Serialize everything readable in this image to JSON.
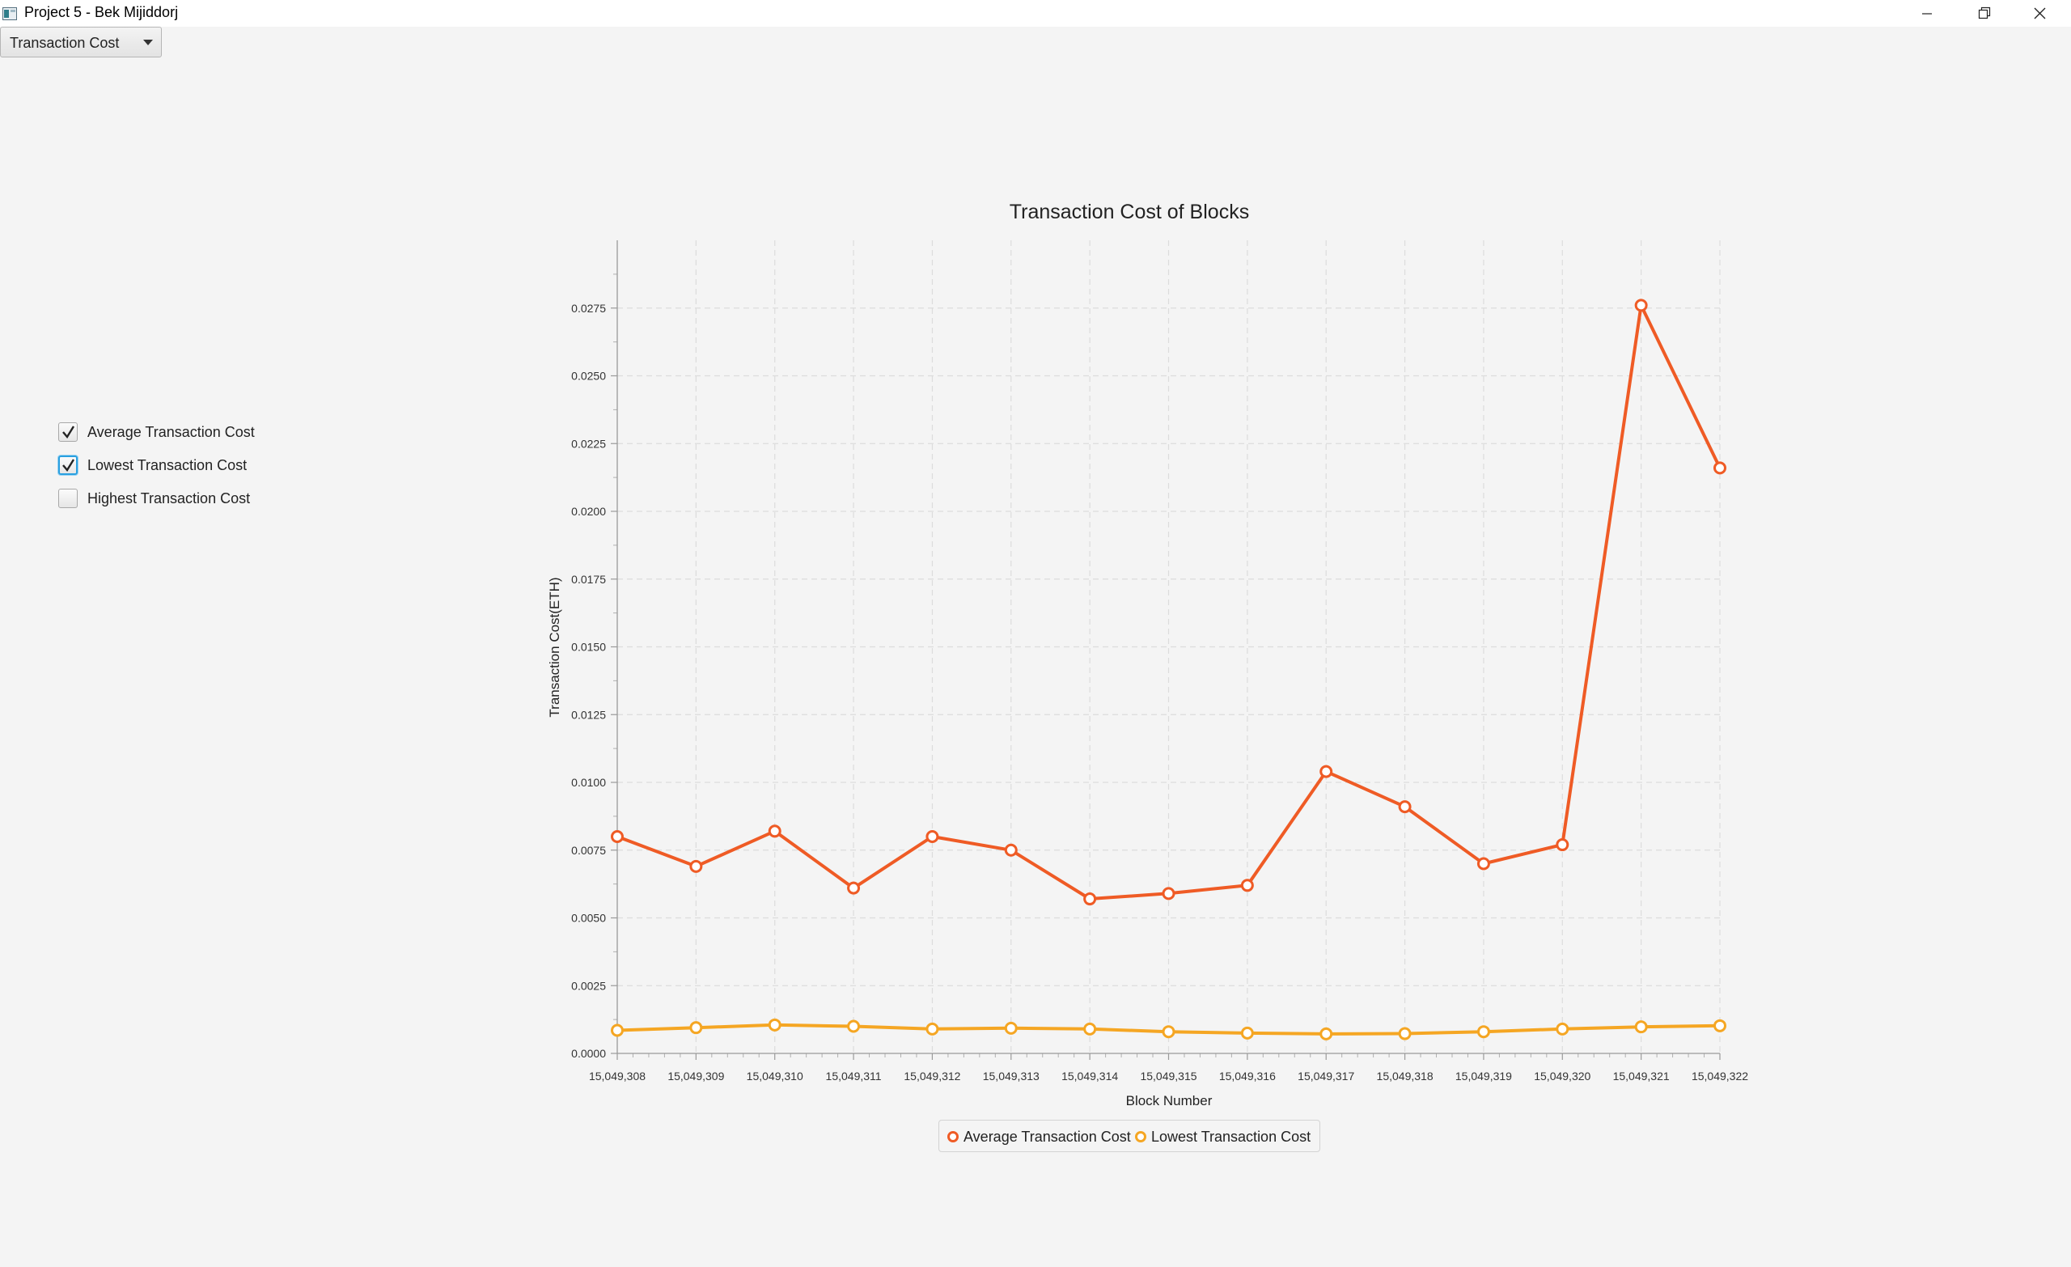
{
  "window": {
    "title": "Project 5 - Bek Mijiddorj",
    "icon": "app-window-icon",
    "controls": [
      "minimize-icon",
      "restore-icon",
      "close-icon"
    ]
  },
  "dropdown": {
    "selected": "Transaction Cost",
    "icon": "chevron-down-icon"
  },
  "checkboxes": [
    {
      "label": "Average Transaction Cost",
      "checked": true
    },
    {
      "label": "Lowest Transaction Cost",
      "checked": true
    },
    {
      "label": "Highest Transaction Cost",
      "checked": false
    }
  ],
  "colors": {
    "average": "#ef5b25",
    "lowest": "#f5a623",
    "focus": "#2aa0e0"
  },
  "chart_data": {
    "type": "line",
    "title": "Transaction Cost of Blocks",
    "xlabel": "Block Number",
    "ylabel": "Transaction Cost(ETH)",
    "x": [
      15049308,
      15049309,
      15049310,
      15049311,
      15049312,
      15049313,
      15049314,
      15049315,
      15049316,
      15049317,
      15049318,
      15049319,
      15049320,
      15049321,
      15049322
    ],
    "x_tick_labels": [
      "15,049,308",
      "15,049,309",
      "15,049,310",
      "15,049,311",
      "15,049,312",
      "15,049,313",
      "15,049,314",
      "15,049,315",
      "15,049,316",
      "15,049,317",
      "15,049,318",
      "15,049,319",
      "15,049,320",
      "15,049,321",
      "15,049,322"
    ],
    "xlim": [
      15049308,
      15049322
    ],
    "ylim": [
      0,
      0.03
    ],
    "y_ticks": [
      0,
      0.0025,
      0.005,
      0.0075,
      0.01,
      0.0125,
      0.015,
      0.0175,
      0.02,
      0.0225,
      0.025,
      0.0275
    ],
    "y_tick_labels": [
      "0.0000",
      "0.0025",
      "0.0050",
      "0.0075",
      "0.0100",
      "0.0125",
      "0.0150",
      "0.0175",
      "0.0200",
      "0.0225",
      "0.0250",
      "0.0275"
    ],
    "grid": true,
    "legend_position": "bottom-center",
    "series": [
      {
        "name": "Average Transaction Cost",
        "color": "#ef5b25",
        "values": [
          0.008,
          0.0069,
          0.0082,
          0.0061,
          0.008,
          0.0075,
          0.0057,
          0.0059,
          0.0062,
          0.0104,
          0.0091,
          0.007,
          0.0077,
          0.0276,
          0.0216
        ]
      },
      {
        "name": "Lowest Transaction Cost",
        "color": "#f5a623",
        "values": [
          0.00085,
          0.00095,
          0.00105,
          0.001,
          0.0009,
          0.00093,
          0.0009,
          0.0008,
          0.00075,
          0.00072,
          0.00073,
          0.0008,
          0.0009,
          0.00098,
          0.00102
        ]
      }
    ]
  }
}
